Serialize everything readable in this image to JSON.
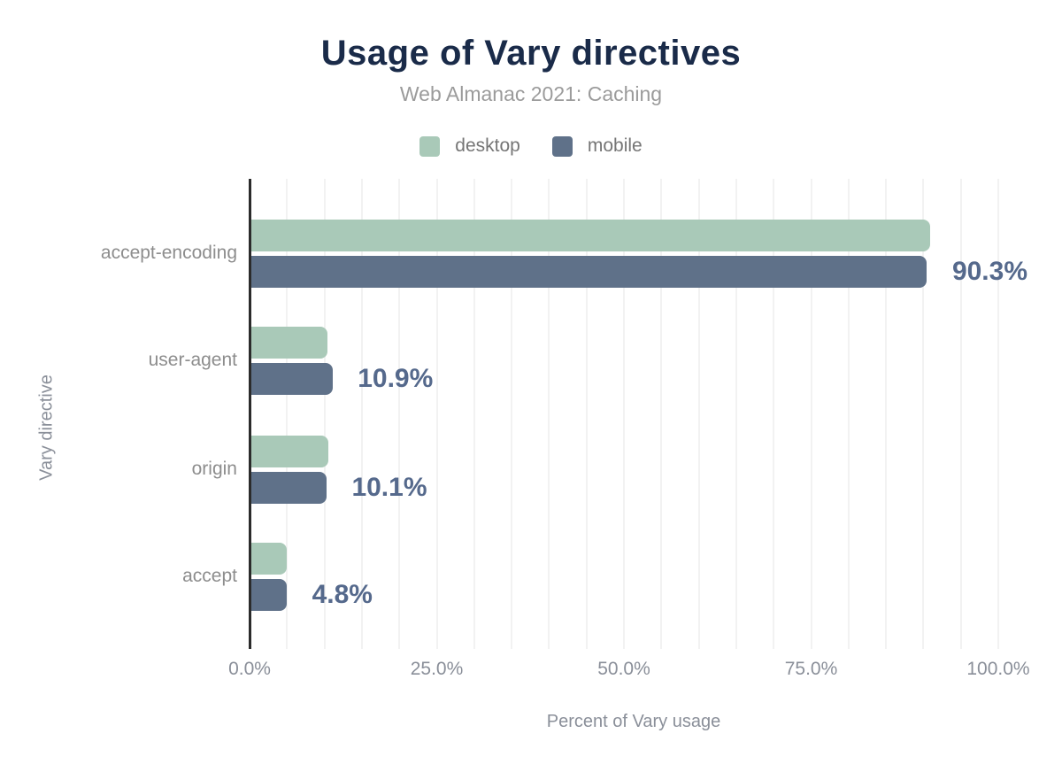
{
  "chart_data": {
    "type": "bar",
    "orientation": "horizontal",
    "title": "Usage of Vary directives",
    "subtitle": "Web Almanac 2021: Caching",
    "xlabel": "Percent of Vary usage",
    "ylabel": "Vary directive",
    "categories": [
      "accept-encoding",
      "user-agent",
      "origin",
      "accept"
    ],
    "series": [
      {
        "name": "desktop",
        "color": "#a9c9b8",
        "values": [
          90.7,
          10.2,
          10.4,
          4.8
        ]
      },
      {
        "name": "mobile",
        "color": "#5f7189",
        "values": [
          90.3,
          10.9,
          10.1,
          4.8
        ]
      }
    ],
    "annotations": {
      "series": "mobile",
      "labels": [
        "90.3%",
        "10.9%",
        "10.1%",
        "4.8%"
      ]
    },
    "xlim": [
      0,
      100
    ],
    "xticks": {
      "values": [
        0,
        25,
        50,
        75,
        100
      ],
      "labels": [
        "0.0%",
        "25.0%",
        "50.0%",
        "75.0%",
        "100.0%"
      ]
    },
    "grid": "vertical, minor gridlines every 5%",
    "legend_position": "top"
  },
  "colors": {
    "background": "#ffffff",
    "title": "#1a2b49",
    "subtitle": "#9b9b9b",
    "legend_text": "#757575",
    "category_text": "#8d8d8d",
    "axis_text": "#8a8f99",
    "annotation_text": "#55698c",
    "axis_line": "#2b2b2b",
    "gridline": "#f2f2f2",
    "desktop": "#a9c9b8",
    "mobile": "#5f7189"
  }
}
